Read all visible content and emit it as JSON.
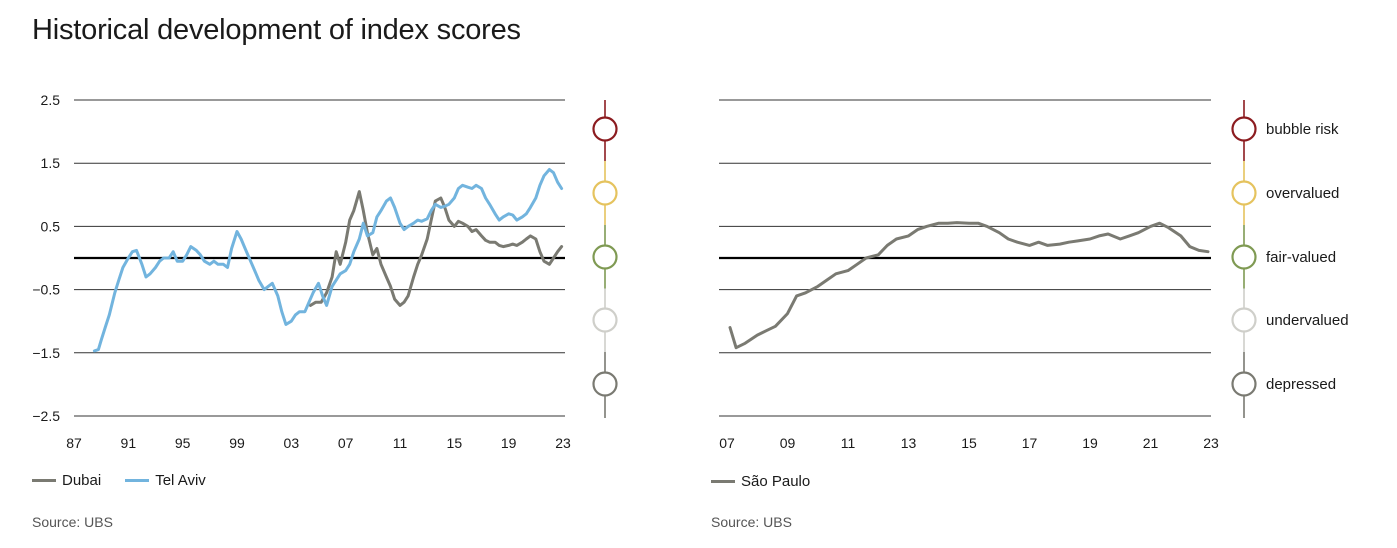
{
  "title": "Historical development of index scores",
  "left_source": "Source: UBS",
  "right_source": "Source: UBS",
  "zones": [
    {
      "label": "bubble risk",
      "color": "#8c1c20"
    },
    {
      "label": "overvalued",
      "color": "#e5c35e"
    },
    {
      "label": "fair-valued",
      "color": "#7f9a53"
    },
    {
      "label": "undervalued",
      "color": "#cfcfca"
    },
    {
      "label": "depressed",
      "color": "#7a7a72"
    }
  ],
  "chart_data": [
    {
      "type": "line",
      "title": "",
      "xlabel": "",
      "ylabel": "",
      "x_ticks": [
        "87",
        "91",
        "95",
        "99",
        "03",
        "07",
        "11",
        "15",
        "19",
        "23"
      ],
      "y_ticks": [
        "2.5",
        "1.5",
        "0.5",
        "−0.5",
        "−1.5",
        "−2.5"
      ],
      "xlim": [
        1987,
        2023
      ],
      "ylim": [
        -2.5,
        2.5
      ],
      "grid": true,
      "legend": "bottom-left",
      "series": [
        {
          "name": "Dubai",
          "color": "#7a7a72",
          "x": [
            2004.4,
            2004.8,
            2005.2,
            2005.6,
            2006.0,
            2006.3,
            2006.6,
            2007.0,
            2007.3,
            2007.6,
            2008.0,
            2008.3,
            2008.6,
            2009.0,
            2009.3,
            2009.6,
            2010.0,
            2010.3,
            2010.6,
            2011.0,
            2011.3,
            2011.6,
            2012.0,
            2012.3,
            2012.6,
            2013.0,
            2013.3,
            2013.6,
            2014.0,
            2014.3,
            2014.6,
            2015.0,
            2015.3,
            2015.6,
            2016.0,
            2016.3,
            2016.6,
            2017.0,
            2017.3,
            2017.6,
            2018.0,
            2018.3,
            2018.6,
            2019.0,
            2019.3,
            2019.6,
            2020.0,
            2020.3,
            2020.6,
            2021.0,
            2021.3,
            2021.6,
            2022.0,
            2022.3,
            2022.6,
            2022.9
          ],
          "values": [
            -0.75,
            -0.7,
            -0.7,
            -0.55,
            -0.3,
            0.1,
            -0.1,
            0.25,
            0.6,
            0.75,
            1.05,
            0.75,
            0.4,
            0.05,
            0.15,
            -0.1,
            -0.3,
            -0.45,
            -0.65,
            -0.75,
            -0.7,
            -0.6,
            -0.3,
            -0.1,
            0.05,
            0.3,
            0.6,
            0.9,
            0.95,
            0.8,
            0.6,
            0.5,
            0.58,
            0.55,
            0.5,
            0.42,
            0.45,
            0.35,
            0.28,
            0.25,
            0.25,
            0.2,
            0.18,
            0.2,
            0.22,
            0.2,
            0.25,
            0.3,
            0.35,
            0.3,
            0.1,
            -0.05,
            -0.1,
            0.0,
            0.1,
            0.18
          ]
        },
        {
          "name": "Tel Aviv",
          "color": "#72b4de",
          "x": [
            1988.5,
            1988.8,
            1989.0,
            1989.3,
            1989.6,
            1990.0,
            1990.3,
            1990.6,
            1991.0,
            1991.3,
            1991.6,
            1992.0,
            1992.3,
            1992.6,
            1993.0,
            1993.3,
            1993.6,
            1994.0,
            1994.3,
            1994.6,
            1995.0,
            1995.3,
            1995.6,
            1996.0,
            1996.3,
            1996.6,
            1997.0,
            1997.3,
            1997.6,
            1998.0,
            1998.3,
            1998.6,
            1999.0,
            1999.3,
            1999.6,
            2000.0,
            2000.3,
            2000.6,
            2001.0,
            2001.3,
            2001.6,
            2002.0,
            2002.3,
            2002.6,
            2003.0,
            2003.3,
            2003.6,
            2004.0,
            2004.3,
            2004.6,
            2005.0,
            2005.3,
            2005.6,
            2006.0,
            2006.3,
            2006.6,
            2007.0,
            2007.3,
            2007.6,
            2008.0,
            2008.3,
            2008.6,
            2009.0,
            2009.3,
            2009.6,
            2010.0,
            2010.3,
            2010.6,
            2011.0,
            2011.3,
            2011.6,
            2012.0,
            2012.3,
            2012.6,
            2013.0,
            2013.3,
            2013.6,
            2014.0,
            2014.3,
            2014.6,
            2015.0,
            2015.3,
            2015.6,
            2016.0,
            2016.3,
            2016.6,
            2017.0,
            2017.3,
            2017.6,
            2018.0,
            2018.3,
            2018.6,
            2019.0,
            2019.3,
            2019.6,
            2020.0,
            2020.3,
            2020.6,
            2021.0,
            2021.3,
            2021.6,
            2022.0,
            2022.3,
            2022.6,
            2022.9
          ],
          "values": [
            -1.47,
            -1.45,
            -1.3,
            -1.1,
            -0.9,
            -0.55,
            -0.35,
            -0.15,
            0.0,
            0.1,
            0.12,
            -0.1,
            -0.3,
            -0.25,
            -0.15,
            -0.05,
            0.0,
            0.0,
            0.1,
            -0.05,
            -0.05,
            0.05,
            0.18,
            0.12,
            0.05,
            -0.05,
            -0.1,
            -0.05,
            -0.1,
            -0.1,
            -0.15,
            0.15,
            0.42,
            0.3,
            0.15,
            -0.05,
            -0.2,
            -0.35,
            -0.5,
            -0.45,
            -0.4,
            -0.6,
            -0.85,
            -1.05,
            -1.0,
            -0.9,
            -0.85,
            -0.85,
            -0.7,
            -0.55,
            -0.4,
            -0.6,
            -0.75,
            -0.45,
            -0.35,
            -0.25,
            -0.2,
            -0.1,
            0.1,
            0.3,
            0.55,
            0.35,
            0.4,
            0.65,
            0.75,
            0.9,
            0.95,
            0.8,
            0.55,
            0.45,
            0.5,
            0.55,
            0.6,
            0.58,
            0.62,
            0.75,
            0.85,
            0.8,
            0.82,
            0.85,
            0.95,
            1.1,
            1.15,
            1.12,
            1.1,
            1.15,
            1.1,
            0.95,
            0.85,
            0.7,
            0.6,
            0.65,
            0.7,
            0.68,
            0.6,
            0.65,
            0.7,
            0.8,
            0.95,
            1.15,
            1.3,
            1.4,
            1.35,
            1.2,
            1.1
          ]
        }
      ]
    },
    {
      "type": "line",
      "title": "",
      "xlabel": "",
      "ylabel": "",
      "x_ticks": [
        "07",
        "09",
        "11",
        "13",
        "15",
        "17",
        "19",
        "21",
        "23"
      ],
      "y_ticks": [],
      "xlim": [
        2007,
        2023
      ],
      "ylim": [
        -2.5,
        2.5
      ],
      "grid": true,
      "legend": "bottom-left",
      "series": [
        {
          "name": "São Paulo",
          "color": "#7a7a72",
          "x": [
            2007.1,
            2007.3,
            2007.6,
            2008.0,
            2008.3,
            2008.6,
            2009.0,
            2009.3,
            2009.6,
            2010.0,
            2010.3,
            2010.6,
            2011.0,
            2011.3,
            2011.6,
            2012.0,
            2012.3,
            2012.6,
            2013.0,
            2013.3,
            2013.6,
            2014.0,
            2014.3,
            2014.6,
            2015.0,
            2015.3,
            2015.6,
            2016.0,
            2016.3,
            2016.6,
            2017.0,
            2017.3,
            2017.6,
            2018.0,
            2018.3,
            2018.6,
            2019.0,
            2019.3,
            2019.6,
            2020.0,
            2020.3,
            2020.6,
            2021.0,
            2021.3,
            2021.6,
            2022.0,
            2022.3,
            2022.6,
            2022.9
          ],
          "values": [
            -1.1,
            -1.42,
            -1.35,
            -1.22,
            -1.15,
            -1.08,
            -0.88,
            -0.6,
            -0.55,
            -0.45,
            -0.35,
            -0.25,
            -0.2,
            -0.1,
            0.0,
            0.05,
            0.2,
            0.3,
            0.35,
            0.45,
            0.5,
            0.55,
            0.55,
            0.56,
            0.55,
            0.55,
            0.5,
            0.4,
            0.3,
            0.25,
            0.2,
            0.25,
            0.2,
            0.22,
            0.25,
            0.27,
            0.3,
            0.35,
            0.38,
            0.3,
            0.35,
            0.4,
            0.5,
            0.55,
            0.48,
            0.35,
            0.18,
            0.12,
            0.1
          ]
        }
      ]
    }
  ]
}
